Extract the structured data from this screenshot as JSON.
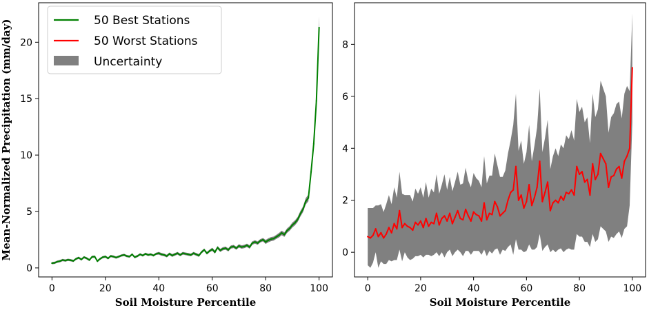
{
  "chart_data": [
    {
      "type": "line",
      "panel": "left",
      "title": "",
      "xlabel": "Soil Moisture Percentile",
      "ylabel": "Mean-Normalized Precipitation (mm/day)",
      "xlim": [
        -5,
        105
      ],
      "ylim": [
        -0.8,
        23.5
      ],
      "xticks": [
        0,
        20,
        40,
        60,
        80,
        100
      ],
      "yticks": [
        0,
        5,
        10,
        15,
        20
      ],
      "grid": false,
      "legend_position": "top-left",
      "legend": [
        {
          "label": "50 Best Stations",
          "color": "#008000",
          "kind": "line"
        },
        {
          "label": "50 Worst Stations",
          "color": "#ff0000",
          "kind": "line"
        },
        {
          "label": "Uncertainty",
          "color": "#808080",
          "kind": "patch"
        }
      ],
      "series": [
        {
          "name": "50 Best Stations",
          "color": "#008000",
          "band_color": "#808080",
          "x": [
            0,
            1,
            2,
            3,
            4,
            5,
            6,
            7,
            8,
            9,
            10,
            11,
            12,
            13,
            14,
            15,
            16,
            17,
            18,
            19,
            20,
            21,
            22,
            23,
            24,
            25,
            26,
            27,
            28,
            29,
            30,
            31,
            32,
            33,
            34,
            35,
            36,
            37,
            38,
            39,
            40,
            41,
            42,
            43,
            44,
            45,
            46,
            47,
            48,
            49,
            50,
            51,
            52,
            53,
            54,
            55,
            56,
            57,
            58,
            59,
            60,
            61,
            62,
            63,
            64,
            65,
            66,
            67,
            68,
            69,
            70,
            71,
            72,
            73,
            74,
            75,
            76,
            77,
            78,
            79,
            80,
            81,
            82,
            83,
            84,
            85,
            86,
            87,
            88,
            89,
            90,
            91,
            92,
            93,
            94,
            95,
            96,
            97,
            98,
            99,
            100
          ],
          "y": [
            0.42,
            0.45,
            0.55,
            0.6,
            0.7,
            0.65,
            0.72,
            0.68,
            0.62,
            0.8,
            0.9,
            0.75,
            0.95,
            0.85,
            0.7,
            0.98,
            1.0,
            0.6,
            0.8,
            0.95,
            1.0,
            0.85,
            1.05,
            1.0,
            0.92,
            1.0,
            1.1,
            1.15,
            1.05,
            1.0,
            1.2,
            0.95,
            1.05,
            1.2,
            1.1,
            1.25,
            1.15,
            1.2,
            1.1,
            1.25,
            1.3,
            1.2,
            1.15,
            1.05,
            1.25,
            1.1,
            1.2,
            1.3,
            1.15,
            1.3,
            1.25,
            1.2,
            1.15,
            1.3,
            1.2,
            1.1,
            1.4,
            1.6,
            1.3,
            1.5,
            1.65,
            1.4,
            1.8,
            1.55,
            1.7,
            1.75,
            1.6,
            1.85,
            1.9,
            1.75,
            1.95,
            1.85,
            1.9,
            2.0,
            1.85,
            2.2,
            2.3,
            2.2,
            2.4,
            2.5,
            2.3,
            2.45,
            2.55,
            2.6,
            2.75,
            2.9,
            3.1,
            2.95,
            3.3,
            3.5,
            3.8,
            4.0,
            4.3,
            4.8,
            5.2,
            5.9,
            6.2,
            8.5,
            11.0,
            14.8,
            21.3
          ],
          "band_halfwidth": [
            0.1,
            0.1,
            0.1,
            0.1,
            0.1,
            0.1,
            0.1,
            0.1,
            0.1,
            0.1,
            0.1,
            0.1,
            0.1,
            0.1,
            0.1,
            0.1,
            0.1,
            0.1,
            0.1,
            0.1,
            0.1,
            0.1,
            0.1,
            0.1,
            0.1,
            0.1,
            0.1,
            0.1,
            0.1,
            0.1,
            0.1,
            0.1,
            0.1,
            0.1,
            0.1,
            0.1,
            0.1,
            0.1,
            0.1,
            0.1,
            0.12,
            0.12,
            0.12,
            0.12,
            0.12,
            0.12,
            0.12,
            0.12,
            0.12,
            0.12,
            0.12,
            0.12,
            0.12,
            0.12,
            0.12,
            0.12,
            0.12,
            0.12,
            0.12,
            0.12,
            0.14,
            0.14,
            0.14,
            0.14,
            0.14,
            0.14,
            0.14,
            0.14,
            0.14,
            0.14,
            0.15,
            0.15,
            0.15,
            0.15,
            0.15,
            0.15,
            0.15,
            0.15,
            0.15,
            0.15,
            0.18,
            0.18,
            0.18,
            0.18,
            0.18,
            0.2,
            0.2,
            0.2,
            0.2,
            0.2,
            0.22,
            0.22,
            0.22,
            0.25,
            0.25,
            0.28,
            0.3,
            0.35,
            0.4,
            0.45,
            1.0
          ]
        }
      ]
    },
    {
      "type": "line",
      "panel": "right",
      "title": "",
      "xlabel": "Soil Moisture Percentile",
      "ylabel": "",
      "xlim": [
        -5,
        105
      ],
      "ylim": [
        -0.95,
        9.6
      ],
      "xticks": [
        0,
        20,
        40,
        60,
        80,
        100
      ],
      "yticks": [
        0,
        2,
        4,
        6,
        8
      ],
      "grid": false,
      "series": [
        {
          "name": "50 Worst Stations",
          "color": "#ff0000",
          "band_color": "#808080",
          "x": [
            0,
            1,
            2,
            3,
            4,
            5,
            6,
            7,
            8,
            9,
            10,
            11,
            12,
            13,
            14,
            15,
            16,
            17,
            18,
            19,
            20,
            21,
            22,
            23,
            24,
            25,
            26,
            27,
            28,
            29,
            30,
            31,
            32,
            33,
            34,
            35,
            36,
            37,
            38,
            39,
            40,
            41,
            42,
            43,
            44,
            45,
            46,
            47,
            48,
            49,
            50,
            51,
            52,
            53,
            54,
            55,
            56,
            57,
            58,
            59,
            60,
            61,
            62,
            63,
            64,
            65,
            66,
            67,
            68,
            69,
            70,
            71,
            72,
            73,
            74,
            75,
            76,
            77,
            78,
            79,
            80,
            81,
            82,
            83,
            84,
            85,
            86,
            87,
            88,
            89,
            90,
            91,
            92,
            93,
            94,
            95,
            96,
            97,
            98,
            99,
            100
          ],
          "y": [
            0.6,
            0.55,
            0.65,
            0.9,
            0.6,
            0.75,
            0.55,
            0.7,
            0.95,
            0.75,
            1.1,
            0.9,
            1.6,
            0.95,
            1.1,
            1.0,
            0.95,
            0.85,
            1.15,
            1.05,
            1.2,
            0.95,
            1.3,
            1.0,
            1.15,
            1.1,
            1.5,
            1.05,
            1.3,
            1.4,
            1.2,
            1.5,
            1.1,
            1.35,
            1.6,
            1.3,
            1.25,
            1.65,
            1.4,
            1.2,
            1.55,
            1.45,
            1.4,
            1.2,
            1.9,
            1.25,
            1.5,
            1.45,
            1.95,
            1.75,
            1.4,
            1.5,
            1.6,
            2.0,
            2.3,
            2.4,
            3.3,
            2.0,
            2.2,
            1.7,
            1.95,
            2.6,
            1.8,
            2.1,
            2.5,
            3.5,
            1.95,
            2.3,
            2.7,
            1.6,
            1.9,
            2.0,
            1.9,
            2.15,
            2.0,
            2.3,
            2.25,
            2.4,
            2.2,
            3.3,
            3.0,
            3.1,
            2.7,
            2.8,
            2.2,
            3.4,
            2.8,
            3.0,
            3.8,
            3.6,
            3.4,
            2.5,
            2.9,
            2.95,
            3.2,
            3.3,
            2.85,
            3.5,
            3.7,
            4.0,
            7.1
          ],
          "band_halfwidth": [
            1.1,
            1.15,
            1.05,
            0.9,
            1.2,
            1.1,
            1.0,
            1.15,
            1.25,
            1.1,
            1.4,
            1.2,
            1.5,
            1.3,
            1.1,
            1.2,
            1.25,
            1.1,
            1.3,
            1.2,
            1.3,
            1.15,
            1.4,
            1.1,
            1.3,
            1.2,
            1.5,
            1.2,
            1.3,
            1.6,
            1.2,
            1.4,
            1.25,
            1.35,
            1.5,
            1.3,
            1.4,
            1.6,
            1.35,
            1.3,
            1.5,
            1.4,
            1.35,
            1.3,
            1.8,
            1.4,
            1.45,
            1.5,
            1.85,
            1.6,
            1.5,
            1.4,
            1.55,
            1.8,
            2.0,
            2.5,
            2.8,
            1.9,
            2.1,
            1.7,
            1.9,
            2.3,
            1.7,
            2.0,
            2.3,
            2.8,
            1.9,
            2.1,
            2.4,
            1.6,
            1.8,
            2.0,
            1.8,
            2.0,
            2.0,
            2.2,
            2.1,
            2.3,
            2.1,
            2.6,
            2.4,
            2.5,
            2.3,
            2.4,
            2.0,
            2.7,
            2.4,
            2.5,
            2.8,
            2.7,
            2.6,
            2.1,
            2.3,
            2.4,
            2.5,
            2.5,
            2.3,
            2.6,
            2.7,
            2.2,
            2.1
          ]
        }
      ]
    }
  ]
}
